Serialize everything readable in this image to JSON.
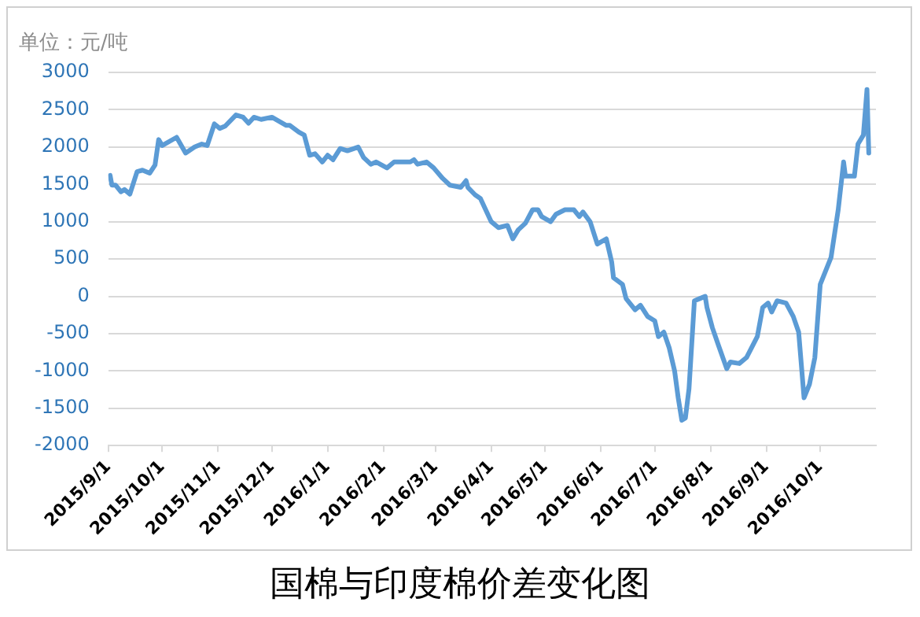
{
  "chart_data": {
    "type": "line",
    "title": "国棉与印度棉价差变化图",
    "ylabel": "单位：元/吨",
    "x": [
      "2015-09-02",
      "2015-09-03",
      "2015-09-05",
      "2015-09-08",
      "2015-09-10",
      "2015-09-13",
      "2015-09-17",
      "2015-09-20",
      "2015-09-24",
      "2015-09-27",
      "2015-09-29",
      "2015-10-01",
      "2015-10-09",
      "2015-10-14",
      "2015-10-19",
      "2015-10-23",
      "2015-10-26",
      "2015-10-30",
      "2015-11-02",
      "2015-11-05",
      "2015-11-11",
      "2015-11-15",
      "2015-11-18",
      "2015-11-21",
      "2015-11-25",
      "2015-12-01",
      "2015-12-09",
      "2015-12-11",
      "2015-12-16",
      "2015-12-19",
      "2015-12-22",
      "2015-12-25",
      "2015-12-29",
      "2016-01-01",
      "2016-01-04",
      "2016-01-08",
      "2016-01-12",
      "2016-01-18",
      "2016-01-21",
      "2016-01-25",
      "2016-01-28",
      "2016-02-03",
      "2016-02-07",
      "2016-02-16",
      "2016-02-18",
      "2016-02-20",
      "2016-02-25",
      "2016-02-29",
      "2016-03-05",
      "2016-03-09",
      "2016-03-15",
      "2016-03-18",
      "2016-03-19",
      "2016-03-23",
      "2016-03-26",
      "2016-04-01",
      "2016-04-05",
      "2016-04-10",
      "2016-04-13",
      "2016-04-16",
      "2016-04-20",
      "2016-04-24",
      "2016-04-27",
      "2016-04-29",
      "2016-05-04",
      "2016-05-07",
      "2016-05-12",
      "2016-05-17",
      "2016-05-20",
      "2016-05-22",
      "2016-05-26",
      "2016-05-30",
      "2016-06-04",
      "2016-06-07",
      "2016-06-08",
      "2016-06-13",
      "2016-06-15",
      "2016-06-20",
      "2016-06-23",
      "2016-06-27",
      "2016-07-01",
      "2016-07-03",
      "2016-07-06",
      "2016-07-09",
      "2016-07-12",
      "2016-07-14",
      "2016-07-16",
      "2016-07-18",
      "2016-07-20",
      "2016-07-23",
      "2016-07-26",
      "2016-07-29",
      "2016-07-30",
      "2016-08-02",
      "2016-08-05",
      "2016-08-10",
      "2016-08-12",
      "2016-08-17",
      "2016-08-21",
      "2016-08-27",
      "2016-08-30",
      "2016-09-02",
      "2016-09-04",
      "2016-09-07",
      "2016-09-12",
      "2016-09-16",
      "2016-09-19",
      "2016-09-22",
      "2016-09-25",
      "2016-09-28",
      "2016-10-01",
      "2016-10-07",
      "2016-10-08",
      "2016-10-11",
      "2016-10-14",
      "2016-10-15",
      "2016-10-20",
      "2016-10-22",
      "2016-10-25",
      "2016-10-27",
      "2016-10-28"
    ],
    "series": [
      {
        "color": "#5b9bd5",
        "values": [
          1620,
          1490,
          1490,
          1400,
          1430,
          1370,
          1670,
          1690,
          1650,
          1760,
          2100,
          2020,
          2130,
          1920,
          2000,
          2040,
          2020,
          2310,
          2250,
          2280,
          2430,
          2400,
          2320,
          2400,
          2370,
          2400,
          2290,
          2290,
          2200,
          2160,
          1890,
          1910,
          1800,
          1890,
          1830,
          1980,
          1950,
          2000,
          1860,
          1770,
          1800,
          1720,
          1800,
          1800,
          1830,
          1770,
          1800,
          1720,
          1580,
          1490,
          1460,
          1550,
          1460,
          1360,
          1310,
          1000,
          920,
          950,
          770,
          890,
          980,
          1160,
          1160,
          1070,
          1000,
          1100,
          1160,
          1160,
          1070,
          1130,
          1000,
          700,
          770,
          460,
          250,
          160,
          -30,
          -180,
          -120,
          -270,
          -330,
          -540,
          -480,
          -690,
          -1000,
          -1360,
          -1660,
          -1630,
          -1240,
          -60,
          -30,
          0,
          -150,
          -420,
          -630,
          -970,
          -880,
          -900,
          -820,
          -540,
          -150,
          -90,
          -210,
          -60,
          -90,
          -270,
          -480,
          -1360,
          -1180,
          -820,
          160,
          520,
          680,
          1160,
          1800,
          1610,
          1610,
          2040,
          2160,
          2770,
          1920
        ]
      }
    ],
    "xlim": [
      "2015-09-01",
      "2016-11-01"
    ],
    "xticks": [
      {
        "value": "2015-09-01",
        "label": "2015/9/1"
      },
      {
        "value": "2015-10-01",
        "label": "2015/10/1"
      },
      {
        "value": "2015-11-01",
        "label": "2015/11/1"
      },
      {
        "value": "2015-12-01",
        "label": "2015/12/1"
      },
      {
        "value": "2016-01-01",
        "label": "2016/1/1"
      },
      {
        "value": "2016-02-01",
        "label": "2016/2/1"
      },
      {
        "value": "2016-03-01",
        "label": "2016/3/1"
      },
      {
        "value": "2016-04-01",
        "label": "2016/4/1"
      },
      {
        "value": "2016-05-01",
        "label": "2016/5/1"
      },
      {
        "value": "2016-06-01",
        "label": "2016/6/1"
      },
      {
        "value": "2016-07-01",
        "label": "2016/7/1"
      },
      {
        "value": "2016-08-01",
        "label": "2016/8/1"
      },
      {
        "value": "2016-09-01",
        "label": "2016/9/1"
      },
      {
        "value": "2016-10-01",
        "label": "2016/10/1"
      }
    ],
    "ylim": [
      -2000,
      3000
    ],
    "yticks": [
      -2000,
      -1500,
      -1000,
      -500,
      0,
      500,
      1000,
      1500,
      2000,
      2500,
      3000
    ],
    "grid": "y",
    "legend": false,
    "marker": "none",
    "line_style": "solid"
  }
}
